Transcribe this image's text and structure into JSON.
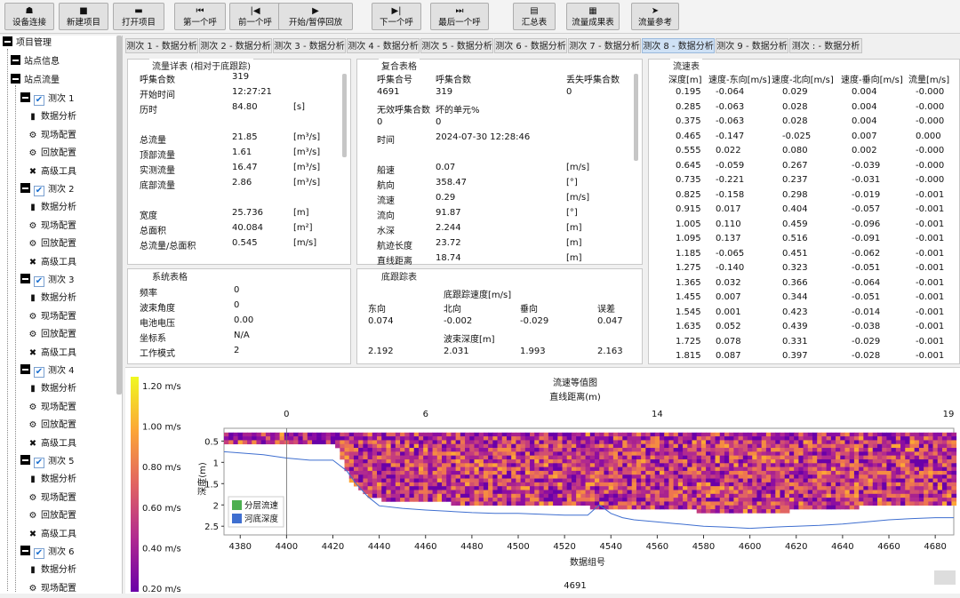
{
  "toolbar": {
    "buttons": [
      {
        "label": "设备连接",
        "icon": "device-connect-icon",
        "glyph": "☗"
      },
      {
        "label": "新建项目",
        "icon": "new-project-icon",
        "glyph": "■"
      },
      {
        "label": "打开项目",
        "icon": "open-folder-icon",
        "glyph": "▬"
      },
      {
        "label": "第一个呼",
        "icon": "first-ping-icon",
        "glyph": "⏮"
      },
      {
        "label": "前一个呼",
        "icon": "previous-ping-icon",
        "glyph": "|◀"
      },
      {
        "label": "开始/暂停回放",
        "icon": "play-pause-icon",
        "glyph": "▶"
      },
      {
        "label": "下一个呼",
        "icon": "next-ping-icon",
        "glyph": "▶|"
      },
      {
        "label": "最后一个呼",
        "icon": "last-ping-icon",
        "glyph": "⏭"
      },
      {
        "label": "汇总表",
        "icon": "summary-table-icon",
        "glyph": "▤"
      },
      {
        "label": "流量成果表",
        "icon": "discharge-results-icon",
        "glyph": "▦"
      },
      {
        "label": "流量参考",
        "icon": "navigation-arrow-icon",
        "glyph": "➤"
      }
    ]
  },
  "tree": {
    "root": "项目管理",
    "site_info": "站点信息",
    "site_flow": "站点流量",
    "measurements": [
      {
        "label": "测次 1",
        "children": [
          "数据分析",
          "现场配置",
          "回放配置",
          "高级工具"
        ]
      },
      {
        "label": "测次 2",
        "children": [
          "数据分析",
          "现场配置",
          "回放配置",
          "高级工具"
        ]
      },
      {
        "label": "测次 3",
        "children": [
          "数据分析",
          "现场配置",
          "回放配置",
          "高级工具"
        ]
      },
      {
        "label": "测次 4",
        "children": [
          "数据分析",
          "现场配置",
          "回放配置",
          "高级工具"
        ]
      },
      {
        "label": "测次 5",
        "children": [
          "数据分析",
          "现场配置",
          "回放配置",
          "高级工具"
        ]
      },
      {
        "label": "测次 6",
        "children": [
          "数据分析",
          "现场配置"
        ]
      }
    ]
  },
  "tabs": [
    "测次 1 - 数据分析",
    "测次 2 - 数据分析",
    "测次 3 - 数据分析",
    "测次 4 - 数据分析",
    "测次 5 - 数据分析",
    "测次 6 - 数据分析",
    "测次 7 - 数据分析",
    "测次 8 - 数据分析",
    "测次 9 - 数据分析",
    "测次 : - 数据分析"
  ],
  "active_tab": 7,
  "flow_detail": {
    "title": "流量详表 (相对于底跟踪)",
    "rows": [
      {
        "label": "呼集合数",
        "value": "319",
        "unit": ""
      },
      {
        "label": "开始时间",
        "value": "12:27:21",
        "unit": ""
      },
      {
        "label": "历时",
        "value": "84.80",
        "unit": "[s]"
      },
      {
        "label": "",
        "value": "",
        "unit": ""
      },
      {
        "label": "总流量",
        "value": "21.85",
        "unit": "[m³/s]"
      },
      {
        "label": "顶部流量",
        "value": "1.61",
        "unit": "[m³/s]"
      },
      {
        "label": "实测流量",
        "value": "16.47",
        "unit": "[m³/s]"
      },
      {
        "label": "底部流量",
        "value": "2.86",
        "unit": "[m³/s]"
      },
      {
        "label": "",
        "value": "",
        "unit": ""
      },
      {
        "label": "宽度",
        "value": "25.736",
        "unit": "[m]"
      },
      {
        "label": "总面积",
        "value": "40.084",
        "unit": "[m²]"
      },
      {
        "label": "总流量/总面积",
        "value": "0.545",
        "unit": "[m/s]"
      }
    ]
  },
  "composite": {
    "title": "复合表格",
    "rows": [
      [
        "呼集合号",
        "呼集合数",
        "",
        "丢失呼集合数"
      ],
      [
        "4691",
        "319",
        "",
        "0"
      ],
      [
        "无效呼集合数",
        "坏的单元%",
        "",
        ""
      ],
      [
        "0",
        "0",
        "",
        ""
      ],
      [
        "时间",
        "2024-07-30 12:28:46",
        "",
        ""
      ],
      [
        "",
        "",
        "",
        ""
      ],
      [
        "船速",
        "0.07",
        "",
        "[m/s]"
      ],
      [
        "航向",
        "358.47",
        "",
        "[°]"
      ],
      [
        "流速",
        "0.29",
        "",
        "[m/s]"
      ],
      [
        "流向",
        "91.87",
        "",
        "[°]"
      ],
      [
        "水深",
        "2.244",
        "",
        "[m]"
      ],
      [
        "航迹长度",
        "23.72",
        "",
        "[m]"
      ],
      [
        "直线距离",
        "18.74",
        "",
        "[m]"
      ]
    ]
  },
  "velocity": {
    "title": "流速表",
    "headers": [
      "深度[m]",
      "速度-东向[m/s]",
      "速度-北向[m/s]",
      "速度-垂向[m/s]",
      "流量[m/s]"
    ],
    "rows": [
      [
        "0.195",
        "-0.064",
        "0.029",
        "0.004",
        "-0.000"
      ],
      [
        "0.285",
        "-0.063",
        "0.028",
        "0.004",
        "-0.000"
      ],
      [
        "0.375",
        "-0.063",
        "0.028",
        "0.004",
        "-0.000"
      ],
      [
        "0.465",
        "-0.147",
        "-0.025",
        "0.007",
        "0.000"
      ],
      [
        "0.555",
        "0.022",
        "0.080",
        "0.002",
        "-0.000"
      ],
      [
        "0.645",
        "-0.059",
        "0.267",
        "-0.039",
        "-0.000"
      ],
      [
        "0.735",
        "-0.221",
        "0.237",
        "-0.031",
        "-0.000"
      ],
      [
        "0.825",
        "-0.158",
        "0.298",
        "-0.019",
        "-0.001"
      ],
      [
        "0.915",
        "0.017",
        "0.404",
        "-0.057",
        "-0.001"
      ],
      [
        "1.005",
        "0.110",
        "0.459",
        "-0.096",
        "-0.001"
      ],
      [
        "1.095",
        "0.137",
        "0.516",
        "-0.091",
        "-0.001"
      ],
      [
        "1.185",
        "-0.065",
        "0.451",
        "-0.062",
        "-0.001"
      ],
      [
        "1.275",
        "-0.140",
        "0.323",
        "-0.051",
        "-0.001"
      ],
      [
        "1.365",
        "0.032",
        "0.366",
        "-0.064",
        "-0.001"
      ],
      [
        "1.455",
        "0.007",
        "0.344",
        "-0.051",
        "-0.001"
      ],
      [
        "1.545",
        "0.001",
        "0.423",
        "-0.014",
        "-0.001"
      ],
      [
        "1.635",
        "0.052",
        "0.439",
        "-0.038",
        "-0.001"
      ],
      [
        "1.725",
        "0.078",
        "0.331",
        "-0.029",
        "-0.001"
      ],
      [
        "1.815",
        "0.087",
        "0.397",
        "-0.028",
        "-0.001"
      ]
    ]
  },
  "system": {
    "title": "系统表格",
    "rows": [
      {
        "label": "频率",
        "value": "0"
      },
      {
        "label": "波束角度",
        "value": "0"
      },
      {
        "label": "电池电压",
        "value": "0.00"
      },
      {
        "label": "坐标系",
        "value": "N/A"
      },
      {
        "label": "工作模式",
        "value": "2"
      }
    ]
  },
  "bottom_track": {
    "title": "底跟踪表",
    "speed_label": "底跟踪速度[m/s]",
    "headers": [
      "东向",
      "北向",
      "垂向",
      "误差"
    ],
    "speeds": [
      "0.074",
      "-0.002",
      "-0.029",
      "0.047"
    ],
    "depth_label": "波束深度[m]",
    "depths": [
      "2.192",
      "2.031",
      "1.993",
      "2.163"
    ]
  },
  "chart_data": {
    "type": "heatmap",
    "title": "流速等值图",
    "top_xlabel": "直线距离(m)",
    "top_ticks": [
      "0",
      "6",
      "14",
      "19"
    ],
    "xlabel": "数据组号",
    "ylabel": "深度(m)",
    "x_ticks": [
      "4380",
      "4400",
      "4420",
      "4440",
      "4460",
      "4480",
      "4500",
      "4520",
      "4540",
      "4560",
      "4580",
      "4600",
      "4620",
      "4640",
      "4660",
      "4680"
    ],
    "y_ticks": [
      "0.5",
      "1",
      "1.5",
      "2",
      "2.5"
    ],
    "xlim": [
      4373,
      4688
    ],
    "ylim": [
      0.2,
      2.6
    ],
    "colorbar": {
      "labels": [
        "1.20 m/s",
        "1.00 m/s",
        "0.80 m/s",
        "0.60 m/s",
        "0.40 m/s",
        "0.20 m/s"
      ]
    },
    "legend": [
      "分层流速",
      "河底深度"
    ],
    "legend_colors": [
      "#4caf50",
      "#3f6fd0"
    ],
    "current_ping": "4691",
    "river_bed": {
      "x": [
        4373,
        4380,
        4390,
        4400,
        4410,
        4420,
        4426,
        4430,
        4435,
        4440,
        4450,
        4460,
        4470,
        4480,
        4490,
        4500,
        4510,
        4520,
        4530,
        4535,
        4540,
        4545,
        4550,
        4560,
        4570,
        4580,
        4590,
        4600,
        4610,
        4620,
        4630,
        4640,
        4650,
        4660,
        4670,
        4680,
        4688
      ],
      "y": [
        0.75,
        0.78,
        0.82,
        0.9,
        0.95,
        0.95,
        1.2,
        1.5,
        1.8,
        2.02,
        2.08,
        2.12,
        2.15,
        2.18,
        2.2,
        2.2,
        2.22,
        2.24,
        2.24,
        2.0,
        2.2,
        2.3,
        2.35,
        2.4,
        2.45,
        2.5,
        2.52,
        2.55,
        2.52,
        2.5,
        2.48,
        2.45,
        2.4,
        2.35,
        2.32,
        2.3,
        2.3
      ]
    },
    "cells_bottom": {
      "x": [
        4373,
        4400,
        4420,
        4425,
        4428,
        4435,
        4450,
        4500,
        4550,
        4600,
        4650,
        4688
      ],
      "y": [
        0.5,
        0.5,
        0.5,
        1.2,
        1.5,
        1.8,
        1.9,
        1.95,
        2.05,
        2.15,
        2.0,
        1.95
      ]
    }
  }
}
